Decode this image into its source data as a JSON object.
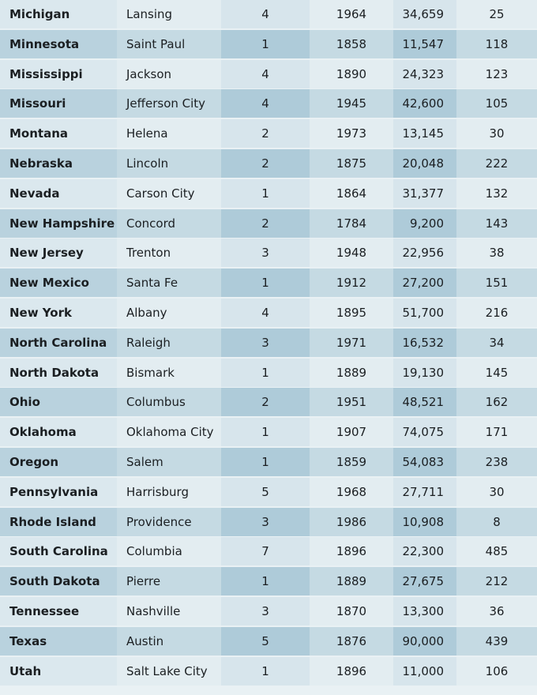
{
  "rows": [
    [
      "Michigan",
      "Lansing",
      "4",
      "1964",
      "34,659",
      "25"
    ],
    [
      "Minnesota",
      "Saint Paul",
      "1",
      "1858",
      "11,547",
      "118"
    ],
    [
      "Mississippi",
      "Jackson",
      "4",
      "1890",
      "24,323",
      "123"
    ],
    [
      "Missouri",
      "Jefferson City",
      "4",
      "1945",
      "42,600",
      "105"
    ],
    [
      "Montana",
      "Helena",
      "2",
      "1973",
      "13,145",
      "30"
    ],
    [
      "Nebraska",
      "Lincoln",
      "2",
      "1875",
      "20,048",
      "222"
    ],
    [
      "Nevada",
      "Carson City",
      "1",
      "1864",
      "31,377",
      "132"
    ],
    [
      "New Hampshire",
      "Concord",
      "2",
      "1784",
      "9,200",
      "143"
    ],
    [
      "New Jersey",
      "Trenton",
      "3",
      "1948",
      "22,956",
      "38"
    ],
    [
      "New Mexico",
      "Santa Fe",
      "1",
      "1912",
      "27,200",
      "151"
    ],
    [
      "New York",
      "Albany",
      "4",
      "1895",
      "51,700",
      "216"
    ],
    [
      "North Carolina",
      "Raleigh",
      "3",
      "1971",
      "16,532",
      "34"
    ],
    [
      "North Dakota",
      "Bismark",
      "1",
      "1889",
      "19,130",
      "145"
    ],
    [
      "Ohio",
      "Columbus",
      "2",
      "1951",
      "48,521",
      "162"
    ],
    [
      "Oklahoma",
      "Oklahoma City",
      "1",
      "1907",
      "74,075",
      "171"
    ],
    [
      "Oregon",
      "Salem",
      "1",
      "1859",
      "54,083",
      "238"
    ],
    [
      "Pennsylvania",
      "Harrisburg",
      "5",
      "1968",
      "27,711",
      "30"
    ],
    [
      "Rhode Island",
      "Providence",
      "3",
      "1986",
      "10,908",
      "8"
    ],
    [
      "South Carolina",
      "Columbia",
      "7",
      "1896",
      "22,300",
      "485"
    ],
    [
      "South Dakota",
      "Pierre",
      "1",
      "1889",
      "27,675",
      "212"
    ],
    [
      "Tennessee",
      "Nashville",
      "3",
      "1870",
      "13,300",
      "36"
    ],
    [
      "Texas",
      "Austin",
      "5",
      "1876",
      "90,000",
      "439"
    ],
    [
      "Utah",
      "Salt Lake City",
      "1",
      "1896",
      "11,000",
      "106"
    ]
  ]
}
